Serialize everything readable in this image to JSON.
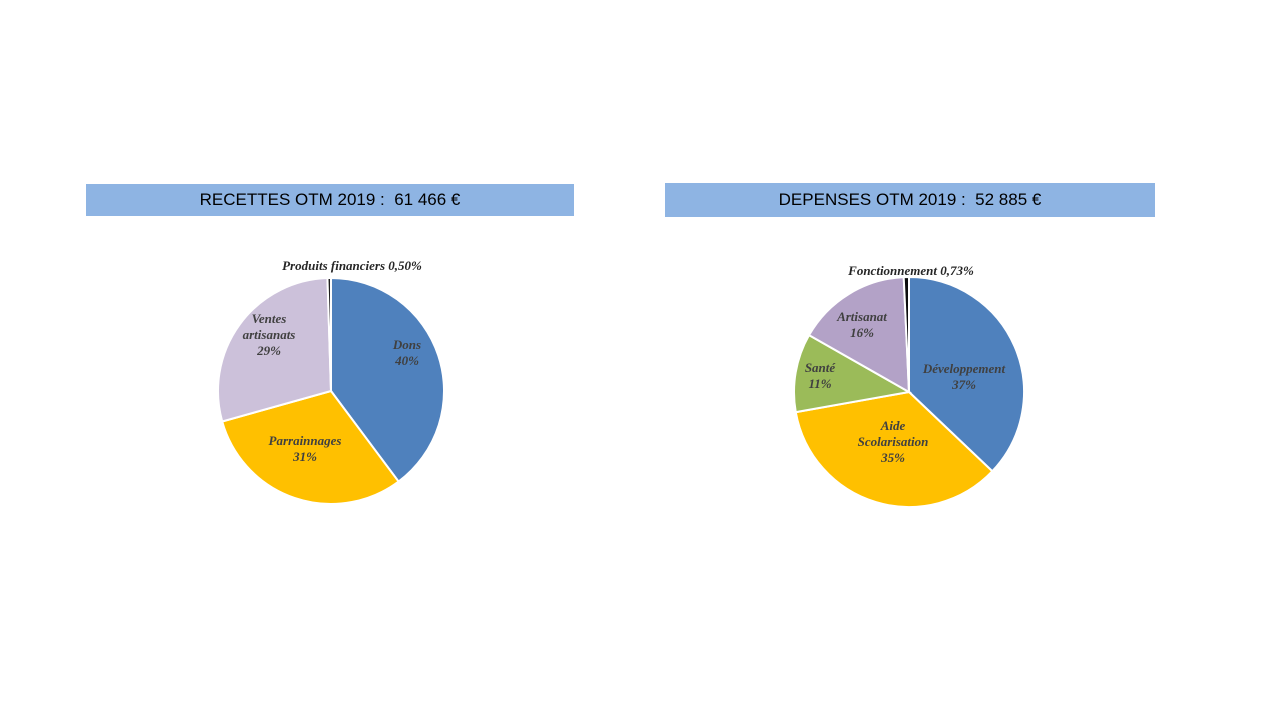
{
  "chart_data": [
    {
      "type": "pie",
      "title": "RECETTES OTM 2019 :  61 466 €",
      "slices": [
        {
          "label": "Dons",
          "value_label": "40%",
          "value": 40,
          "color": "#4f81bd"
        },
        {
          "label": "Parrainnages",
          "value_label": "31%",
          "value": 31,
          "color": "#ffc000"
        },
        {
          "label": "Ventes artisanats",
          "label_lines": [
            "Ventes",
            "artisanats"
          ],
          "value_label": "29%",
          "value": 29,
          "color": "#ccc1da"
        },
        {
          "label": "Produits financiers",
          "value_label": "0,50%",
          "value": 0.5,
          "color": "#1f1f1f"
        }
      ]
    },
    {
      "type": "pie",
      "title": "DEPENSES OTM 2019 :  52 885 €",
      "slices": [
        {
          "label": "Développement",
          "value_label": "37%",
          "value": 37,
          "color": "#4f81bd"
        },
        {
          "label": "Aide Scolarisation",
          "label_lines": [
            "Aide",
            "Scolarisation"
          ],
          "value_label": "35%",
          "value": 35,
          "color": "#ffc000"
        },
        {
          "label": "Santé",
          "value_label": "11%",
          "value": 11,
          "color": "#9bbb59"
        },
        {
          "label": "Artisanat",
          "value_label": "16%",
          "value": 16,
          "color": "#b3a2c7"
        },
        {
          "label": "Fonctionnement",
          "value_label": "0,73%",
          "value": 0.73,
          "color": "#0d0d0d"
        }
      ]
    }
  ]
}
